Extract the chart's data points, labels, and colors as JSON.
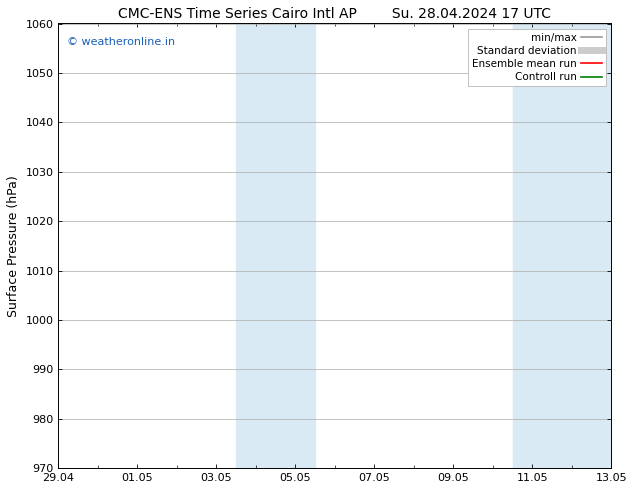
{
  "title_left": "CMC-ENS Time Series Cairo Intl AP",
  "title_right": "Su. 28.04.2024 17 UTC",
  "ylabel": "Surface Pressure (hPa)",
  "ylim": [
    970,
    1060
  ],
  "yticks": [
    970,
    980,
    990,
    1000,
    1010,
    1020,
    1030,
    1040,
    1050,
    1060
  ],
  "xtick_labels": [
    "29.04",
    "01.05",
    "03.05",
    "05.05",
    "07.05",
    "09.05",
    "11.05",
    "13.05"
  ],
  "xtick_positions": [
    0,
    2,
    4,
    6,
    8,
    10,
    12,
    14
  ],
  "xlim": [
    0,
    14
  ],
  "shaded_regions": [
    {
      "x_start": 4.5,
      "x_end": 6.5
    },
    {
      "x_start": 11.5,
      "x_end": 14.0
    }
  ],
  "shaded_color": "#daeaf5",
  "background_color": "#ffffff",
  "grid_color": "#aaaaaa",
  "watermark_text": "© weatheronline.in",
  "watermark_color": "#1a5eb8",
  "legend_entries": [
    {
      "label": "min/max",
      "color": "#999999",
      "lw": 1.2
    },
    {
      "label": "Standard deviation",
      "color": "#cccccc",
      "lw": 5
    },
    {
      "label": "Ensemble mean run",
      "color": "#ff0000",
      "lw": 1.2
    },
    {
      "label": "Controll run",
      "color": "#008000",
      "lw": 1.2
    }
  ],
  "title_fontsize": 10,
  "ylabel_fontsize": 9,
  "tick_fontsize": 8,
  "legend_fontsize": 7.5,
  "watermark_fontsize": 8
}
